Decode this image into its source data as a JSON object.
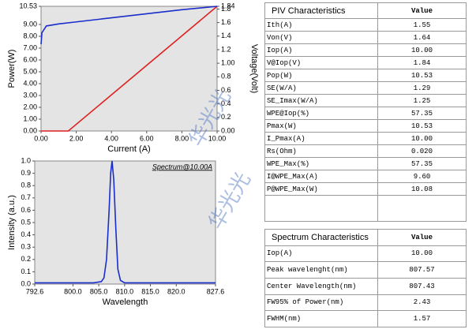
{
  "chart_data": [
    {
      "type": "line",
      "x_label": "Current (A)",
      "y_label": "Power(W)",
      "y2_label": "Voltage(Volt)",
      "xlim": [
        0,
        10
      ],
      "xticks": [
        {
          "value": 0,
          "label": "0.00"
        },
        {
          "value": 2,
          "label": "2.00"
        },
        {
          "value": 4,
          "label": "4.00"
        },
        {
          "value": 6,
          "label": "6.00"
        },
        {
          "value": 8,
          "label": "8.00"
        },
        {
          "value": 10,
          "label": "10.00"
        }
      ],
      "ylim": [
        0,
        10.53
      ],
      "yticks": [
        {
          "value": 0,
          "label": "0.00"
        },
        {
          "value": 1,
          "label": "1.00"
        },
        {
          "value": 2,
          "label": "2.00"
        },
        {
          "value": 3,
          "label": "3.00"
        },
        {
          "value": 4,
          "label": "4.00"
        },
        {
          "value": 5,
          "label": "5.00"
        },
        {
          "value": 6,
          "label": "6.00"
        },
        {
          "value": 7,
          "label": "7.00"
        },
        {
          "value": 8,
          "label": "8.00"
        },
        {
          "value": 9,
          "label": "9.00"
        },
        10.53
      ],
      "y2lim": [
        0,
        1.84
      ],
      "y2ticks": [
        {
          "value": 0,
          "label": "0.00"
        },
        0.2,
        0.4,
        0.6,
        0.8,
        {
          "value": 1,
          "label": "1.00"
        },
        1.2,
        1.4,
        1.6,
        1.8,
        1.84
      ],
      "series": [
        {
          "color": "#e02020",
          "x": [
            0,
            1.55,
            10
          ],
          "values": [
            0,
            0,
            10.53
          ]
        },
        {
          "color": "#1a2ecc",
          "axis": "y2",
          "x": [
            0,
            0.05,
            0.3,
            1,
            2,
            4,
            6,
            8,
            10
          ],
          "values": [
            1.28,
            1.45,
            1.55,
            1.58,
            1.61,
            1.67,
            1.73,
            1.79,
            1.84
          ]
        }
      ]
    },
    {
      "type": "line",
      "x_label": "Wavelength",
      "y_label": "Intensity (a.u.)",
      "annotation": "Spectrum@10.00A",
      "xlim": [
        792.6,
        827.6
      ],
      "xticks": [
        792.6,
        {
          "value": 800,
          "label": "800.0"
        },
        {
          "value": 805,
          "label": "805.0"
        },
        {
          "value": 810,
          "label": "810.0"
        },
        {
          "value": 815,
          "label": "815.0"
        },
        {
          "value": 820,
          "label": "820.0"
        },
        827.6
      ],
      "ylim": [
        0,
        1
      ],
      "yticks": [
        {
          "value": 0,
          "label": "0.0"
        },
        0.1,
        0.2,
        0.3,
        0.4,
        0.5,
        0.6,
        0.7,
        0.8,
        0.9,
        {
          "value": 1,
          "label": "1.0"
        }
      ],
      "series": [
        {
          "color": "#1a2ecc",
          "x": [
            792.6,
            800,
            804,
            805.5,
            806,
            806.5,
            807,
            807.3,
            807.57,
            807.9,
            808.3,
            808.7,
            809.2,
            810,
            815,
            820,
            827.6
          ],
          "values": [
            0.01,
            0.01,
            0.01,
            0.02,
            0.05,
            0.2,
            0.6,
            0.9,
            1,
            0.85,
            0.45,
            0.12,
            0.03,
            0.01,
            0.01,
            0.01,
            0.01
          ]
        }
      ]
    }
  ],
  "piv_table": {
    "header": [
      "PIV Characteristics",
      "Value"
    ],
    "rows": [
      [
        "Ith(A)",
        "1.55"
      ],
      [
        "Von(V)",
        "1.64"
      ],
      [
        "Iop(A)",
        "10.00"
      ],
      [
        "V@Iop(V)",
        "1.84"
      ],
      [
        "Pop(W)",
        "10.53"
      ],
      [
        "SE(W/A)",
        "1.29"
      ],
      [
        "SE_Imax(W/A)",
        "1.25"
      ],
      [
        "WPE@Iop(%)",
        "57.35"
      ],
      [
        "Pmax(W)",
        "10.53"
      ],
      [
        "I_Pmax(A)",
        "10.00"
      ],
      [
        "Rs(Ohm)",
        "0.020"
      ],
      [
        "WPE_Max(%)",
        "57.35"
      ],
      [
        "I@WPE_Max(A)",
        "9.60"
      ],
      [
        "P@WPE_Max(W)",
        "10.08"
      ]
    ]
  },
  "spectrum_table": {
    "header": [
      "Spectrum Characteristics",
      "Value"
    ],
    "rows": [
      [
        "Iop(A)",
        "10.00"
      ],
      [
        "Peak wavelenght(nm)",
        "807.57"
      ],
      [
        "Center Wavelength(nm)",
        "807.43"
      ],
      [
        "FW95% of Power(nm)",
        "2.43"
      ],
      [
        "FWHM(nm)",
        "1.57"
      ]
    ]
  },
  "watermarks": [
    "华光光",
    "华光光"
  ]
}
